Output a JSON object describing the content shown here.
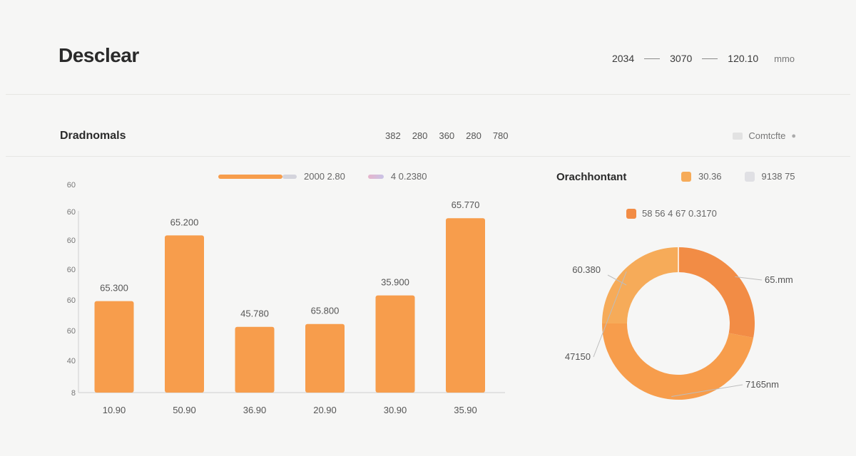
{
  "header": {
    "brand": "Desclear",
    "stats": [
      "2034",
      "3070",
      "120.10"
    ],
    "unit": "mmo"
  },
  "section": {
    "title": "Dradnomals",
    "periods": [
      "382",
      "280",
      "360",
      "280",
      "780"
    ],
    "compare_label": "Comtcfte"
  },
  "bar_legend": {
    "primary": "2000 2.80",
    "secondary": "4 0.2380"
  },
  "donut_panel": {
    "title": "Orachhontant",
    "legend": [
      "30.36",
      "9138 75"
    ],
    "sub_legend": "58 56 4 67 0.3170"
  },
  "colors": {
    "orange": "#f79d4c",
    "orange_dark": "#f28c45",
    "orange_light": "#f6ab59",
    "gray_light": "#d4d4dc",
    "pink": "#e6b4cc",
    "lavender": "#c9c3e6",
    "axis": "#cfcfcf",
    "text": "#555555"
  },
  "chart_data": [
    {
      "type": "bar",
      "categories": [
        "10.90",
        "50.90",
        "36.90",
        "20.90",
        "30.90",
        "35.90"
      ],
      "values": [
        32,
        55,
        23,
        24,
        34,
        61
      ],
      "data_labels": [
        "65.300",
        "65.200",
        "45.780",
        "65.800",
        "35.900",
        "65.770"
      ],
      "y_tick_labels": [
        "8",
        "40",
        "60",
        "60",
        "60",
        "60",
        "60",
        "60",
        "60"
      ],
      "ylim": [
        0,
        80
      ],
      "grid": false
    },
    {
      "type": "pie",
      "donut": true,
      "values": [
        28,
        47,
        25
      ],
      "slice_labels": [
        "65.mm",
        "7165nm",
        "47150"
      ],
      "top_label": "60.380"
    }
  ]
}
